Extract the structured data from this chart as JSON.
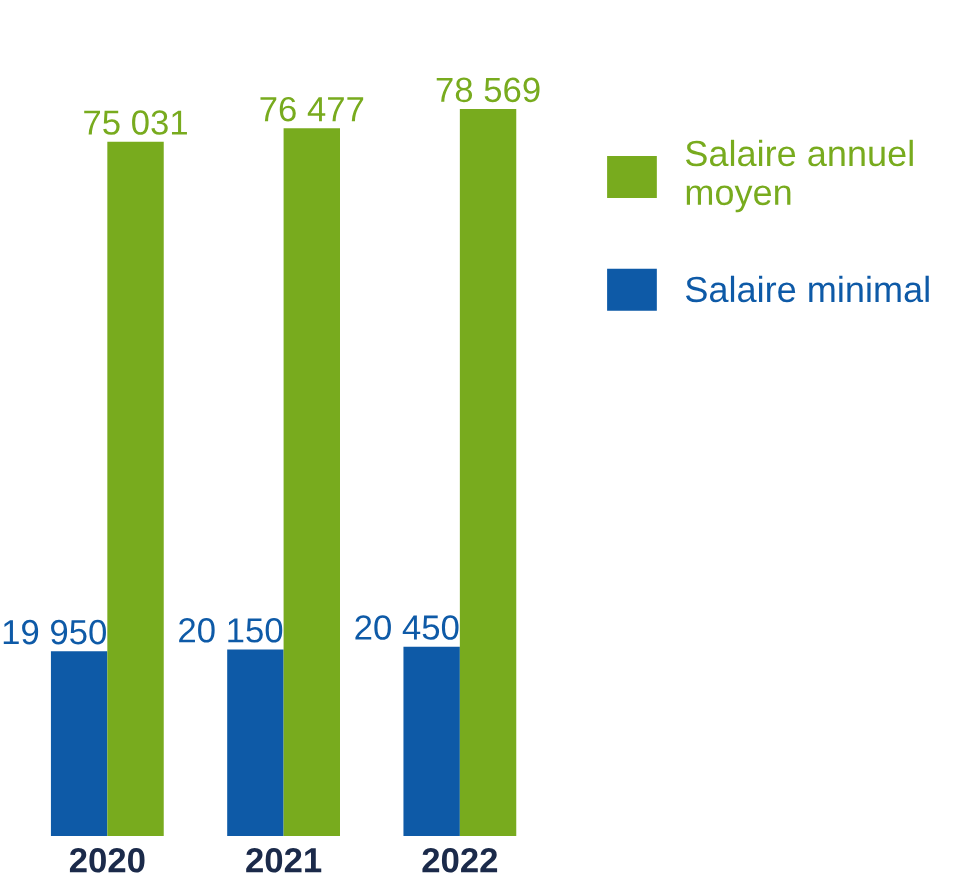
{
  "chart_data": {
    "type": "bar",
    "categories": [
      "2020",
      "2021",
      "2022"
    ],
    "series": [
      {
        "name": "Salaire minimal",
        "color": "#0e5aa7",
        "values": [
          19950,
          20150,
          20450
        ],
        "value_labels": [
          "19 950",
          "20 150",
          "20 450"
        ]
      },
      {
        "name": "Salaire annuel moyen",
        "color": "#78ab1e",
        "values": [
          75031,
          76477,
          78569
        ],
        "value_labels": [
          "75 031",
          "76 477",
          "78 569"
        ]
      }
    ],
    "legend": "right"
  }
}
